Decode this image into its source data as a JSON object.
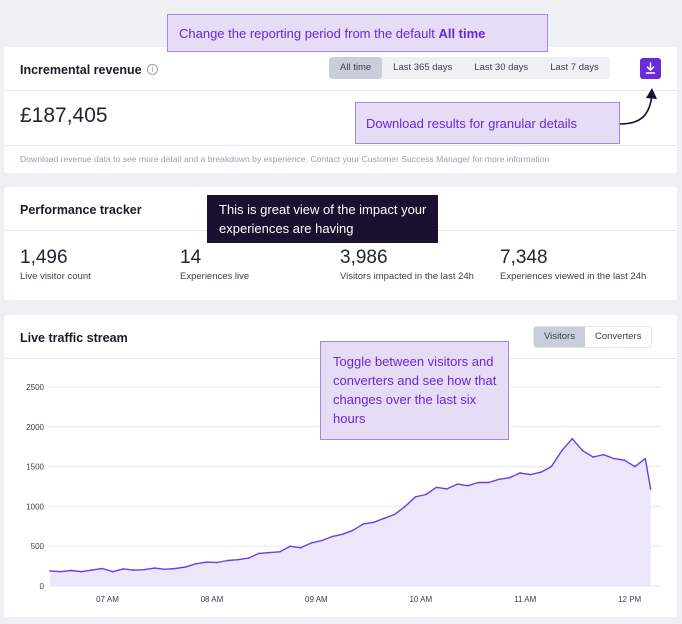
{
  "callouts": {
    "period_prefix": "Change the reporting period from the default ",
    "period_bold": "All time",
    "download": "Download results for granular details",
    "impact": "This is great view of the impact your experiences are having",
    "toggle": "Toggle between visitors and converters and see how that changes over the last six hours"
  },
  "revenue": {
    "title": "Incremental revenue",
    "info_icon": "i",
    "periods": [
      "All time",
      "Last 365 days",
      "Last 30 days",
      "Last 7 days"
    ],
    "selected_period": "All time",
    "download_icon": "download-icon",
    "value": "£187,405",
    "note": "Download revenue data to see more detail and a breakdown by experience. Contact your Customer Success Manager for more information"
  },
  "performance": {
    "title": "Performance tracker",
    "metrics": [
      {
        "value": "1,496",
        "label": "Live visitor count"
      },
      {
        "value": "14",
        "label": "Experiences live"
      },
      {
        "value": "3,986",
        "label": "Visitors impacted in the last 24h"
      },
      {
        "value": "7,348",
        "label": "Experiences viewed in the last 24h"
      }
    ]
  },
  "traffic": {
    "title": "Live traffic stream",
    "toggles": [
      "Visitors",
      "Converters"
    ],
    "selected_toggle": "Visitors"
  },
  "colors": {
    "accent": "#6c2bd9",
    "line": "#6b3fe0",
    "area_fill": "#ece6fb",
    "callout_bg": "#e6dcf6",
    "callout_text": "#6a27d6",
    "dark_callout_bg": "#1c1030"
  },
  "chart_data": {
    "type": "area",
    "ylim": [
      0,
      2500
    ],
    "yticks": [
      0,
      500,
      1000,
      1500,
      2000,
      2500
    ],
    "xticks": [
      "07 AM",
      "08 AM",
      "09 AM",
      "10 AM",
      "11 AM",
      "12 PM"
    ],
    "xtick_positions": [
      7,
      8,
      9,
      10,
      11,
      12
    ],
    "xlim": [
      6.43,
      12.3
    ],
    "grid": true,
    "x": [
      6.45,
      6.55,
      6.65,
      6.75,
      6.85,
      6.95,
      7.05,
      7.15,
      7.25,
      7.35,
      7.45,
      7.55,
      7.65,
      7.75,
      7.85,
      7.95,
      8.05,
      8.15,
      8.25,
      8.35,
      8.45,
      8.55,
      8.65,
      8.75,
      8.85,
      8.95,
      9.05,
      9.15,
      9.25,
      9.35,
      9.45,
      9.55,
      9.65,
      9.75,
      9.85,
      9.95,
      10.05,
      10.15,
      10.25,
      10.35,
      10.45,
      10.55,
      10.65,
      10.75,
      10.85,
      10.95,
      11.05,
      11.15,
      11.25,
      11.35,
      11.45,
      11.55,
      11.65,
      11.75,
      11.85,
      11.95,
      12.05,
      12.15,
      12.2
    ],
    "y": [
      190,
      180,
      195,
      180,
      200,
      220,
      180,
      215,
      200,
      205,
      225,
      210,
      220,
      240,
      280,
      300,
      295,
      320,
      330,
      350,
      410,
      420,
      430,
      500,
      480,
      540,
      570,
      620,
      650,
      700,
      780,
      800,
      850,
      900,
      1000,
      1120,
      1150,
      1240,
      1220,
      1280,
      1260,
      1300,
      1300,
      1340,
      1360,
      1420,
      1400,
      1430,
      1500,
      1700,
      1850,
      1700,
      1620,
      1650,
      1600,
      1580,
      1500,
      1600,
      1220
    ]
  }
}
